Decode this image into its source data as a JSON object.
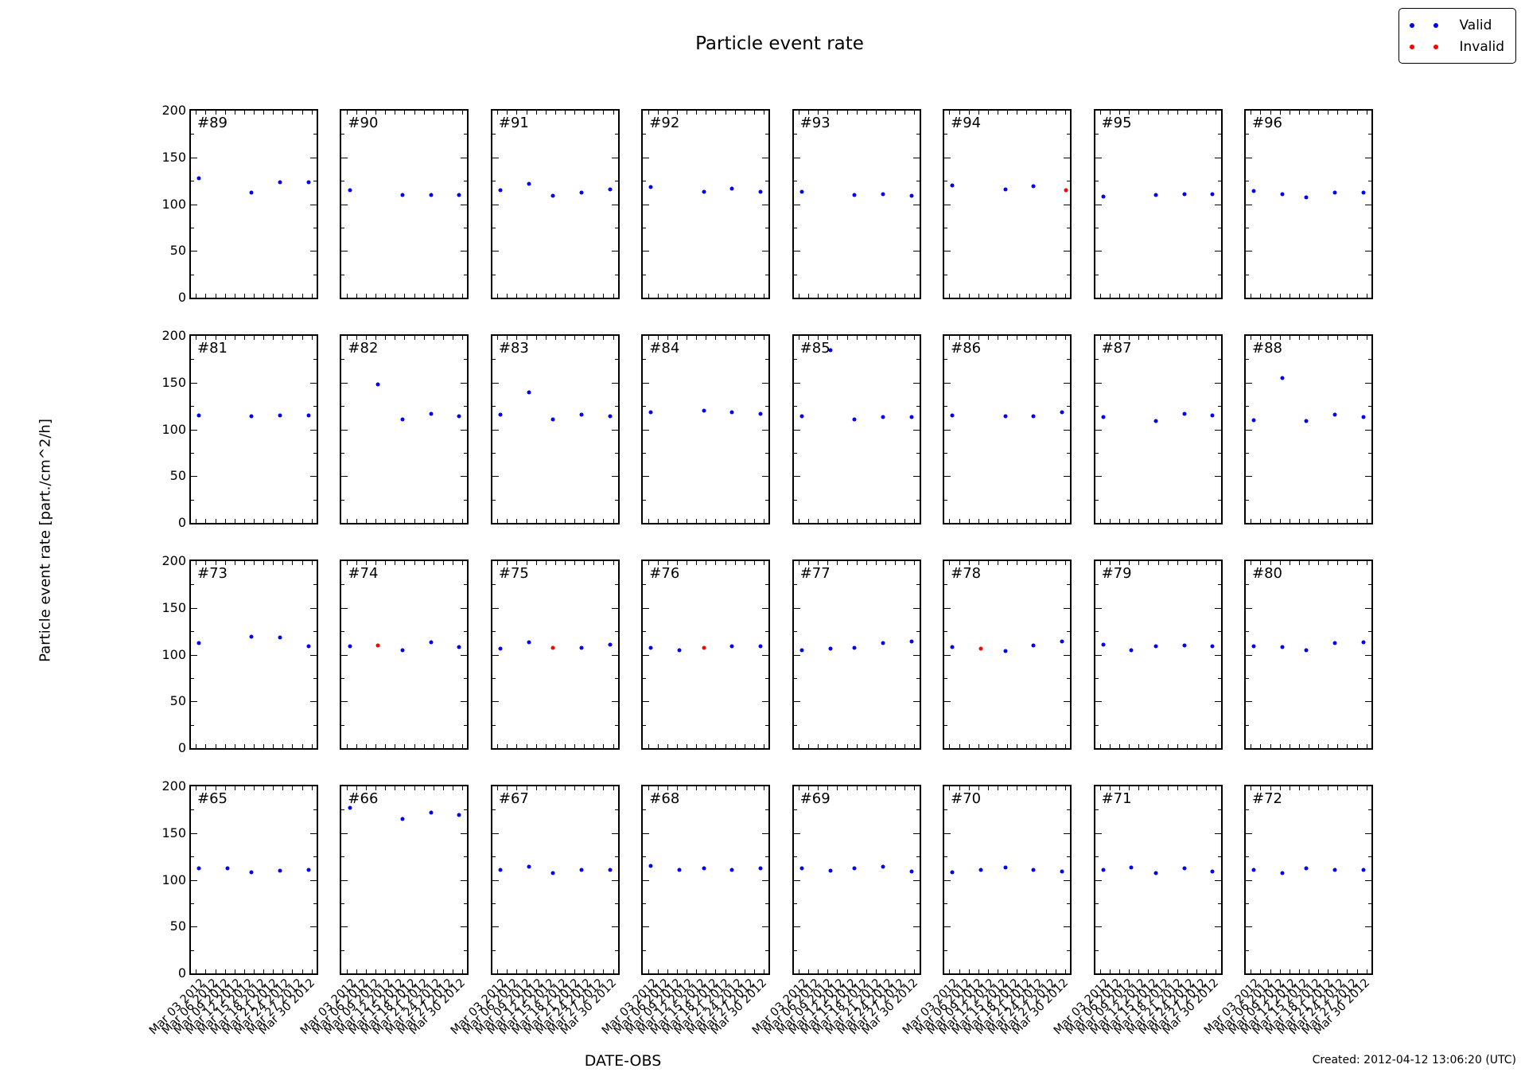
{
  "title": "Particle event rate",
  "y_axis_label": "Particle event rate [part./cm^2/h]",
  "x_axis_label": "DATE-OBS",
  "created_note": "Created: 2012-04-12 13:06:20 (UTC)",
  "legend": {
    "valid_label": "Valid",
    "invalid_label": "Invalid"
  },
  "colors": {
    "valid": "#0000ff",
    "invalid": "#ff0000",
    "frame": "#000000",
    "background": "#ffffff"
  },
  "chart_data": {
    "type": "scatter",
    "title": "Particle event rate",
    "xlabel": "DATE-OBS",
    "ylabel": "Particle event rate [part./cm^2/h]",
    "ylim": [
      0,
      200
    ],
    "yticks": [
      0,
      50,
      100,
      150,
      200
    ],
    "x_domain_days_march_2012": [
      1,
      32
    ],
    "xtick_labels": [
      "Mar 03 2012",
      "Mar 06 2012",
      "Mar 09 2012",
      "Mar 12 2012",
      "Mar 15 2012",
      "Mar 18 2012",
      "Mar 21 2012",
      "Mar 24 2012",
      "Mar 27 2012",
      "Mar 30 2012"
    ],
    "xtick_days": [
      3,
      6,
      9,
      12,
      15,
      18,
      21,
      24,
      27,
      30
    ],
    "legend_entries": [
      {
        "label": "Valid",
        "color": "#0000ff"
      },
      {
        "label": "Invalid",
        "color": "#ff0000"
      }
    ],
    "grid": {
      "rows": 4,
      "cols": 8
    },
    "subplots": [
      {
        "id": "#89",
        "points": [
          {
            "day": 3,
            "value": 128,
            "valid": true
          },
          {
            "day": 16,
            "value": 112,
            "valid": true
          },
          {
            "day": 23,
            "value": 123,
            "valid": true
          },
          {
            "day": 30,
            "value": 123,
            "valid": true
          }
        ]
      },
      {
        "id": "#90",
        "points": [
          {
            "day": 3,
            "value": 115,
            "valid": true
          },
          {
            "day": 16,
            "value": 110,
            "valid": true
          },
          {
            "day": 23,
            "value": 110,
            "valid": true
          },
          {
            "day": 30,
            "value": 110,
            "valid": true
          }
        ]
      },
      {
        "id": "#91",
        "points": [
          {
            "day": 3,
            "value": 115,
            "valid": true
          },
          {
            "day": 10,
            "value": 122,
            "valid": true
          },
          {
            "day": 16,
            "value": 109,
            "valid": true
          },
          {
            "day": 23,
            "value": 112,
            "valid": true
          },
          {
            "day": 30,
            "value": 116,
            "valid": true
          }
        ]
      },
      {
        "id": "#92",
        "points": [
          {
            "day": 3,
            "value": 118,
            "valid": true
          },
          {
            "day": 16,
            "value": 113,
            "valid": true
          },
          {
            "day": 23,
            "value": 117,
            "valid": true
          },
          {
            "day": 30,
            "value": 113,
            "valid": true
          }
        ]
      },
      {
        "id": "#93",
        "points": [
          {
            "day": 3,
            "value": 113,
            "valid": true
          },
          {
            "day": 16,
            "value": 110,
            "valid": true
          },
          {
            "day": 23,
            "value": 111,
            "valid": true
          },
          {
            "day": 30,
            "value": 109,
            "valid": true
          }
        ]
      },
      {
        "id": "#94",
        "points": [
          {
            "day": 3,
            "value": 120,
            "valid": true
          },
          {
            "day": 16,
            "value": 116,
            "valid": true
          },
          {
            "day": 23,
            "value": 119,
            "valid": true
          },
          {
            "day": 31,
            "value": 115,
            "valid": false
          }
        ]
      },
      {
        "id": "#95",
        "points": [
          {
            "day": 3,
            "value": 108,
            "valid": true
          },
          {
            "day": 16,
            "value": 110,
            "valid": true
          },
          {
            "day": 23,
            "value": 111,
            "valid": true
          },
          {
            "day": 30,
            "value": 111,
            "valid": true
          }
        ]
      },
      {
        "id": "#96",
        "points": [
          {
            "day": 3,
            "value": 114,
            "valid": true
          },
          {
            "day": 10,
            "value": 111,
            "valid": true
          },
          {
            "day": 16,
            "value": 107,
            "valid": true
          },
          {
            "day": 23,
            "value": 112,
            "valid": true
          },
          {
            "day": 30,
            "value": 112,
            "valid": true
          }
        ]
      },
      {
        "id": "#81",
        "points": [
          {
            "day": 3,
            "value": 115,
            "valid": true
          },
          {
            "day": 16,
            "value": 114,
            "valid": true
          },
          {
            "day": 23,
            "value": 115,
            "valid": true
          },
          {
            "day": 30,
            "value": 115,
            "valid": true
          }
        ]
      },
      {
        "id": "#82",
        "points": [
          {
            "day": 10,
            "value": 148,
            "valid": true
          },
          {
            "day": 16,
            "value": 111,
            "valid": true
          },
          {
            "day": 23,
            "value": 117,
            "valid": true
          },
          {
            "day": 30,
            "value": 114,
            "valid": true
          }
        ]
      },
      {
        "id": "#83",
        "points": [
          {
            "day": 3,
            "value": 116,
            "valid": true
          },
          {
            "day": 10,
            "value": 140,
            "valid": true
          },
          {
            "day": 16,
            "value": 111,
            "valid": true
          },
          {
            "day": 23,
            "value": 116,
            "valid": true
          },
          {
            "day": 30,
            "value": 114,
            "valid": true
          }
        ]
      },
      {
        "id": "#84",
        "points": [
          {
            "day": 3,
            "value": 118,
            "valid": true
          },
          {
            "day": 16,
            "value": 120,
            "valid": true
          },
          {
            "day": 23,
            "value": 118,
            "valid": true
          },
          {
            "day": 30,
            "value": 117,
            "valid": true
          }
        ]
      },
      {
        "id": "#85",
        "points": [
          {
            "day": 3,
            "value": 114,
            "valid": true
          },
          {
            "day": 10,
            "value": 185,
            "valid": true
          },
          {
            "day": 16,
            "value": 111,
            "valid": true
          },
          {
            "day": 23,
            "value": 113,
            "valid": true
          },
          {
            "day": 30,
            "value": 113,
            "valid": true
          }
        ]
      },
      {
        "id": "#86",
        "points": [
          {
            "day": 3,
            "value": 115,
            "valid": true
          },
          {
            "day": 16,
            "value": 114,
            "valid": true
          },
          {
            "day": 23,
            "value": 114,
            "valid": true
          },
          {
            "day": 30,
            "value": 118,
            "valid": true
          }
        ]
      },
      {
        "id": "#87",
        "points": [
          {
            "day": 3,
            "value": 113,
            "valid": true
          },
          {
            "day": 16,
            "value": 109,
            "valid": true
          },
          {
            "day": 23,
            "value": 117,
            "valid": true
          },
          {
            "day": 30,
            "value": 115,
            "valid": true
          }
        ]
      },
      {
        "id": "#88",
        "points": [
          {
            "day": 3,
            "value": 110,
            "valid": true
          },
          {
            "day": 10,
            "value": 155,
            "valid": true
          },
          {
            "day": 16,
            "value": 109,
            "valid": true
          },
          {
            "day": 23,
            "value": 116,
            "valid": true
          },
          {
            "day": 30,
            "value": 113,
            "valid": true
          }
        ]
      },
      {
        "id": "#73",
        "points": [
          {
            "day": 3,
            "value": 112,
            "valid": true
          },
          {
            "day": 16,
            "value": 119,
            "valid": true
          },
          {
            "day": 23,
            "value": 118,
            "valid": true
          },
          {
            "day": 30,
            "value": 109,
            "valid": true
          }
        ]
      },
      {
        "id": "#74",
        "points": [
          {
            "day": 3,
            "value": 109,
            "valid": true
          },
          {
            "day": 10,
            "value": 110,
            "valid": false
          },
          {
            "day": 16,
            "value": 105,
            "valid": true
          },
          {
            "day": 23,
            "value": 113,
            "valid": true
          },
          {
            "day": 30,
            "value": 108,
            "valid": true
          }
        ]
      },
      {
        "id": "#75",
        "points": [
          {
            "day": 3,
            "value": 106,
            "valid": true
          },
          {
            "day": 10,
            "value": 113,
            "valid": true
          },
          {
            "day": 16,
            "value": 107,
            "valid": false
          },
          {
            "day": 23,
            "value": 107,
            "valid": true
          },
          {
            "day": 30,
            "value": 111,
            "valid": true
          }
        ]
      },
      {
        "id": "#76",
        "points": [
          {
            "day": 3,
            "value": 107,
            "valid": true
          },
          {
            "day": 10,
            "value": 105,
            "valid": true
          },
          {
            "day": 16,
            "value": 107,
            "valid": false
          },
          {
            "day": 23,
            "value": 109,
            "valid": true
          },
          {
            "day": 30,
            "value": 109,
            "valid": true
          }
        ]
      },
      {
        "id": "#77",
        "points": [
          {
            "day": 3,
            "value": 105,
            "valid": true
          },
          {
            "day": 10,
            "value": 106,
            "valid": true
          },
          {
            "day": 16,
            "value": 107,
            "valid": true
          },
          {
            "day": 23,
            "value": 112,
            "valid": true
          },
          {
            "day": 30,
            "value": 114,
            "valid": true
          }
        ]
      },
      {
        "id": "#78",
        "points": [
          {
            "day": 3,
            "value": 108,
            "valid": true
          },
          {
            "day": 10,
            "value": 106,
            "valid": false
          },
          {
            "day": 16,
            "value": 104,
            "valid": true
          },
          {
            "day": 23,
            "value": 110,
            "valid": true
          },
          {
            "day": 30,
            "value": 114,
            "valid": true
          }
        ]
      },
      {
        "id": "#79",
        "points": [
          {
            "day": 3,
            "value": 111,
            "valid": true
          },
          {
            "day": 10,
            "value": 105,
            "valid": true
          },
          {
            "day": 16,
            "value": 109,
            "valid": true
          },
          {
            "day": 23,
            "value": 110,
            "valvalid": true,
            "valid": true
          },
          {
            "day": 30,
            "value": 109,
            "valid": true
          }
        ]
      },
      {
        "id": "#80",
        "points": [
          {
            "day": 3,
            "value": 109,
            "valid": true
          },
          {
            "day": 10,
            "value": 108,
            "valid": true
          },
          {
            "day": 16,
            "value": 105,
            "valid": true
          },
          {
            "day": 23,
            "value": 112,
            "valid": true
          },
          {
            "day": 30,
            "value": 113,
            "valid": true
          }
        ]
      },
      {
        "id": "#65",
        "points": [
          {
            "day": 3,
            "value": 112,
            "valid": true
          },
          {
            "day": 10,
            "value": 112,
            "valid": true
          },
          {
            "day": 16,
            "value": 108,
            "valid": true
          },
          {
            "day": 23,
            "value": 110,
            "valid": true
          },
          {
            "day": 30,
            "value": 111,
            "valid": true
          }
        ]
      },
      {
        "id": "#66",
        "points": [
          {
            "day": 3,
            "value": 177,
            "valid": true
          },
          {
            "day": 16,
            "value": 165,
            "valid": true
          },
          {
            "day": 23,
            "value": 172,
            "valid": true
          },
          {
            "day": 30,
            "value": 169,
            "valid": true
          }
        ]
      },
      {
        "id": "#67",
        "points": [
          {
            "day": 3,
            "value": 111,
            "valid": true
          },
          {
            "day": 10,
            "value": 114,
            "valid": true
          },
          {
            "day": 16,
            "value": 107,
            "valid": true
          },
          {
            "day": 23,
            "value": 111,
            "valid": true
          },
          {
            "day": 30,
            "value": 111,
            "valid": true
          }
        ]
      },
      {
        "id": "#68",
        "points": [
          {
            "day": 3,
            "value": 115,
            "valid": true
          },
          {
            "day": 10,
            "value": 111,
            "valid": true
          },
          {
            "day": 16,
            "value": 112,
            "valid": true
          },
          {
            "day": 23,
            "value": 111,
            "valid": true
          },
          {
            "day": 30,
            "value": 112,
            "valid": true
          }
        ]
      },
      {
        "id": "#69",
        "points": [
          {
            "day": 3,
            "value": 112,
            "valid": true
          },
          {
            "day": 10,
            "value": 110,
            "valid": true
          },
          {
            "day": 16,
            "value": 112,
            "valid": true
          },
          {
            "day": 23,
            "value": 114,
            "valid": true
          },
          {
            "day": 30,
            "value": 109,
            "valid": true
          }
        ]
      },
      {
        "id": "#70",
        "points": [
          {
            "day": 3,
            "value": 108,
            "valid": true
          },
          {
            "day": 10,
            "value": 111,
            "valid": true
          },
          {
            "day": 16,
            "value": 113,
            "valid": true
          },
          {
            "day": 23,
            "value": 111,
            "valid": true
          },
          {
            "day": 30,
            "value": 109,
            "valid": true
          }
        ]
      },
      {
        "id": "#71",
        "points": [
          {
            "day": 3,
            "value": 111,
            "valid": true
          },
          {
            "day": 10,
            "value": 113,
            "valid": true
          },
          {
            "day": 16,
            "value": 107,
            "valid": true
          },
          {
            "day": 23,
            "value": 112,
            "valid": true
          },
          {
            "day": 30,
            "value": 109,
            "valid": true
          }
        ]
      },
      {
        "id": "#72",
        "points": [
          {
            "day": 3,
            "value": 111,
            "valid": true
          },
          {
            "day": 10,
            "value": 107,
            "valid": true
          },
          {
            "day": 16,
            "value": 112,
            "valid": true
          },
          {
            "day": 23,
            "value": 111,
            "valid": true
          },
          {
            "day": 30,
            "value": 111,
            "valid": true
          }
        ]
      }
    ]
  }
}
